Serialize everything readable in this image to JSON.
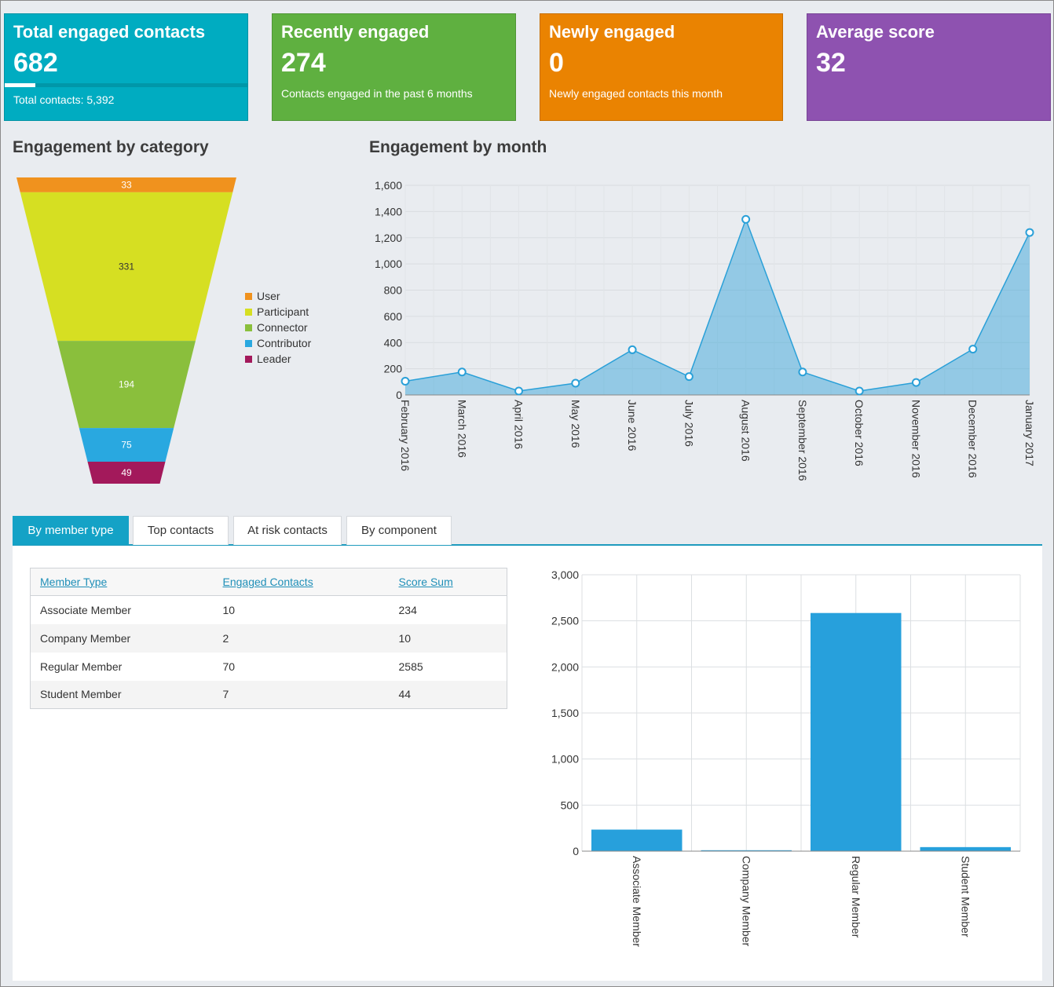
{
  "tiles": {
    "total": {
      "title": "Total engaged contacts",
      "value": "682",
      "sub": "Total contacts: 5,392",
      "progress": 0.126,
      "color": "#00acc1"
    },
    "recent": {
      "title": "Recently engaged",
      "value": "274",
      "sub": "Contacts engaged in the past 6 months",
      "color": "#5fb040"
    },
    "new": {
      "title": "Newly engaged",
      "value": "0",
      "sub": "Newly engaged contacts this month",
      "color": "#ea8301"
    },
    "avg": {
      "title": "Average score",
      "value": "32",
      "color": "#8e52b0"
    }
  },
  "sections": {
    "category_title": "Engagement by category",
    "month_title": "Engagement by month"
  },
  "tabs": [
    "By member type",
    "Top contacts",
    "At risk contacts",
    "By component"
  ],
  "table": {
    "headers": [
      "Member Type",
      "Engaged Contacts",
      "Score Sum"
    ],
    "rows": [
      [
        "Associate Member",
        "10",
        "234"
      ],
      [
        "Company Member",
        "2",
        "10"
      ],
      [
        "Regular Member",
        "70",
        "2585"
      ],
      [
        "Student Member",
        "7",
        "44"
      ]
    ]
  },
  "chart_data": [
    {
      "type": "funnel",
      "title": "Engagement by category",
      "categories": [
        "User",
        "Participant",
        "Connector",
        "Contributor",
        "Leader"
      ],
      "values": [
        33,
        331,
        194,
        75,
        49
      ],
      "colors": [
        "#f0921e",
        "#d6df22",
        "#8abf3c",
        "#29a8e0",
        "#a3195b"
      ],
      "legend": "right"
    },
    {
      "type": "area",
      "title": "Engagement by month",
      "x": [
        "February 2016",
        "March 2016",
        "April 2016",
        "May 2016",
        "June 2016",
        "July 2016",
        "August 2016",
        "September 2016",
        "October 2016",
        "November 2016",
        "December 2016",
        "January 2017"
      ],
      "values": [
        105,
        175,
        30,
        90,
        345,
        140,
        1340,
        175,
        30,
        95,
        350,
        1240
      ],
      "ylim": [
        0,
        1600
      ],
      "yticks": [
        "0",
        "200",
        "400",
        "600",
        "800",
        "1,000",
        "1,200",
        "1,400",
        "1,600"
      ],
      "grid": true,
      "color": "#2aa0d8"
    },
    {
      "type": "bar",
      "categories": [
        "Associate Member",
        "Company Member",
        "Regular Member",
        "Student Member"
      ],
      "values": [
        234,
        10,
        2585,
        44
      ],
      "ylim": [
        0,
        3000
      ],
      "yticks": [
        "0",
        "500",
        "1,000",
        "1,500",
        "2,000",
        "2,500",
        "3,000"
      ],
      "grid": true,
      "color": "#27a0dc"
    }
  ]
}
